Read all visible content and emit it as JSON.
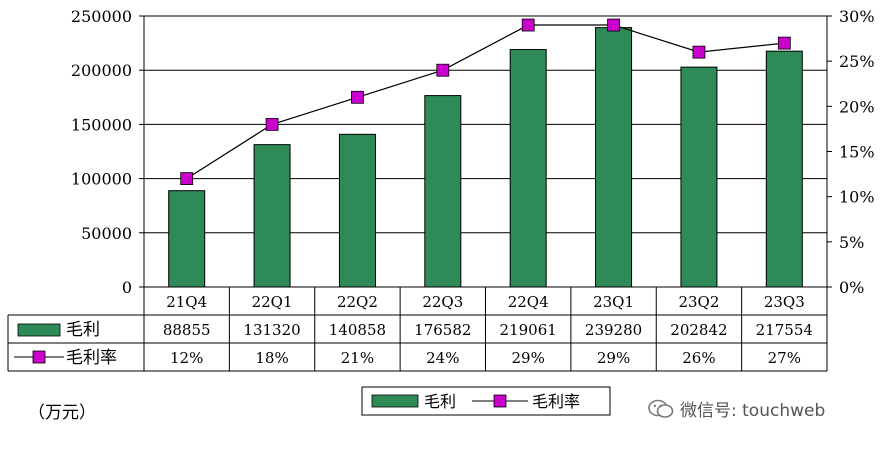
{
  "chart_data": {
    "type": "bar",
    "categories": [
      "21Q4",
      "22Q1",
      "22Q2",
      "22Q3",
      "22Q4",
      "23Q1",
      "23Q2",
      "23Q3"
    ],
    "series": [
      {
        "name": "毛利",
        "type": "bar",
        "axis": "left",
        "color": "#2e8b57",
        "values": [
          88855,
          131320,
          140858,
          176582,
          219061,
          239280,
          202842,
          217554
        ]
      },
      {
        "name": "毛利率",
        "type": "line",
        "axis": "right",
        "color": "#cc00cc",
        "values": [
          12,
          18,
          21,
          24,
          29,
          29,
          26,
          27
        ],
        "labels": [
          "12%",
          "18%",
          "21%",
          "24%",
          "29%",
          "29%",
          "26%",
          "27%"
        ]
      }
    ],
    "ylim_left": [
      0,
      250000
    ],
    "yticks_left": [
      "0",
      "50000",
      "100000",
      "150000",
      "200000",
      "250000"
    ],
    "ylim_right": [
      0,
      30
    ],
    "yticks_right": [
      "0%",
      "5%",
      "10%",
      "15%",
      "20%",
      "25%",
      "30%"
    ],
    "grid": true,
    "legend_position": "bottom-center",
    "unit_label": "（万元）"
  },
  "watermark": {
    "text": "微信号: touchweb",
    "icon": "wechat-icon"
  }
}
